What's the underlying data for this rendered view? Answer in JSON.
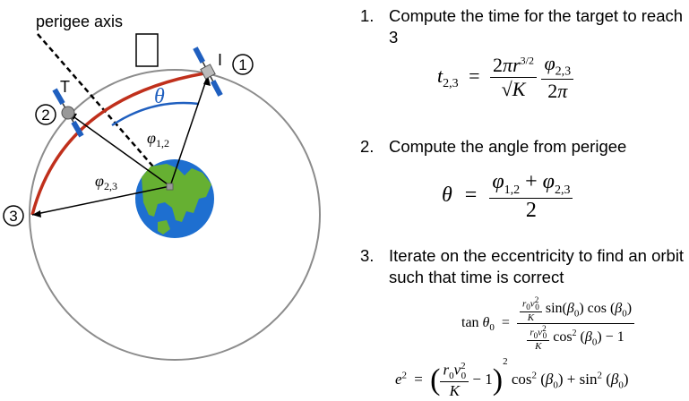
{
  "diagram": {
    "perigee_axis_label": "perigee axis",
    "target_label": "T",
    "interceptor_label": "I",
    "position_labels": [
      "1",
      "2",
      "3"
    ],
    "theta_label": "θ",
    "phi12_label": "φ1,2",
    "phi23_label": "φ2,3",
    "colors": {
      "transfer_arc": "#c0301c",
      "theta_arc": "#1f5fbf",
      "orbit": "#8c8c8c",
      "ocean": "#1e6fd0",
      "land": "#66b032"
    },
    "icons": [
      "satellite-icon",
      "earth-icon"
    ]
  },
  "steps": [
    {
      "number": "1.",
      "text": "Compute the time for the target to reach 3"
    },
    {
      "number": "2.",
      "text": "Compute the angle from perigee"
    },
    {
      "number": "3.",
      "text": "Iterate on the eccentricity to find an orbit such that time is correct"
    }
  ],
  "equations": {
    "eq1": "t2,3 = (2πr^(3/2) / √K) · (φ2,3 / 2π)",
    "eq2": "θ = (φ1,2 + φ2,3) / 2",
    "eq3": "tan θ0 = (r0v0²/K · sin(β0) cos(β0)) / (r0v0²/K · cos²(β0) − 1)",
    "eq4": "e² = (r0v0²/K − 1)² cos²(β0) + sin²(β0)"
  }
}
